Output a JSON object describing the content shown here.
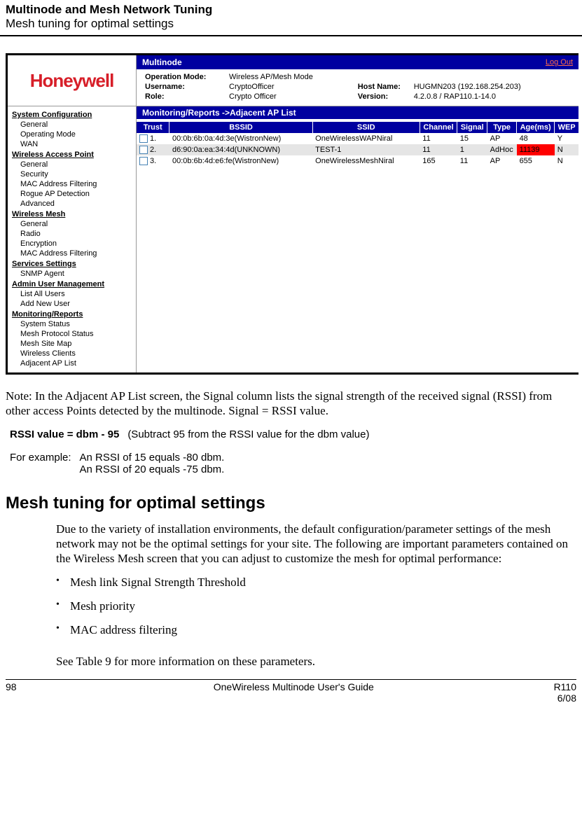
{
  "header": {
    "title": "Multinode and Mesh Network Tuning",
    "subtitle": "Mesh tuning for optimal settings"
  },
  "screenshot": {
    "logo_text": "Honeywell",
    "logo_color": "#d71e28",
    "titlebar": {
      "title": "Multinode",
      "logout_label": "Log Out"
    },
    "info": {
      "operation_mode_label": "Operation Mode:",
      "operation_mode_value": "Wireless AP/Mesh Mode",
      "username_label": "Username:",
      "username_value": "CryptoOfficer",
      "role_label": "Role:",
      "role_value": "Crypto Officer",
      "hostname_label": "Host Name:",
      "hostname_value": "HUGMN203 (192.168.254.203)",
      "version_label": "Version:",
      "version_value": "4.2.0.8 / RAP110.1-14.0"
    },
    "sidebar": [
      {
        "cat": "System Configuration",
        "items": [
          "General",
          "Operating Mode",
          "WAN"
        ]
      },
      {
        "cat": "Wireless Access Point",
        "items": [
          "General",
          "Security",
          "MAC Address Filtering",
          "Rogue AP Detection",
          "Advanced"
        ]
      },
      {
        "cat": "Wireless Mesh",
        "items": [
          "General",
          "Radio",
          "Encryption",
          "MAC Address Filtering"
        ]
      },
      {
        "cat": "Services Settings",
        "items": [
          "SNMP Agent"
        ]
      },
      {
        "cat": "Admin User Management",
        "items": [
          "List All Users",
          "Add New User"
        ]
      },
      {
        "cat": "Monitoring/Reports",
        "items": [
          "System Status",
          "Mesh Protocol Status",
          "Mesh Site Map",
          "Wireless Clients",
          "Adjacent AP List"
        ]
      }
    ],
    "section_title": "Monitoring/Reports ->Adjacent AP List",
    "columns": {
      "trust": "Trust",
      "bssid": "BSSID",
      "ssid": "SSID",
      "channel": "Channel",
      "signal": "Signal",
      "type": "Type",
      "age": "Age(ms)",
      "wep": "WEP"
    },
    "rows": [
      {
        "n": "1.",
        "bssid": "00:0b:6b:0a:4d:3e(WistronNew)",
        "ssid": "OneWirelessWAPNiral",
        "channel": "11",
        "signal": "15",
        "type": "AP",
        "age": "48",
        "wep": "Y",
        "age_red": false
      },
      {
        "n": "2.",
        "bssid": "d6:90:0a:ea:34:4d(UNKNOWN)",
        "ssid": "TEST-1",
        "channel": "11",
        "signal": "1",
        "type": "AdHoc",
        "age": "11139",
        "wep": "N",
        "age_red": true
      },
      {
        "n": "3.",
        "bssid": "00:0b:6b:4d:e6:fe(WistronNew)",
        "ssid": "OneWirelessMeshNiral",
        "channel": "165",
        "signal": "11",
        "type": "AP",
        "age": "655",
        "wep": "N",
        "age_red": false
      }
    ]
  },
  "note_text": "Note:  In the Adjacent AP List screen, the Signal column lists the signal strength of the received signal (RSSI) from other access Points detected by the multinode.  Signal = RSSI value.",
  "calc": {
    "formula": "RSSI value = dbm - 95",
    "formula_note": "(Subtract 95 from the RSSI value for the dbm value)",
    "example_label": "For example:",
    "example_line1": "An RSSI of 15 equals -80 dbm.",
    "example_line2": "An RSSI of 20 equals -75 dbm."
  },
  "section_heading": "Mesh tuning for optimal settings",
  "para1": "Due to the variety of installation environments, the default configuration/parameter settings of the mesh network may not be the optimal settings for your site. The following are important parameters contained on the Wireless Mesh screen that you can adjust to customize the mesh for optimal performance:",
  "bullets": [
    "Mesh link Signal Strength Threshold",
    "Mesh priority",
    "MAC address filtering"
  ],
  "para2": "See Table 9 for more information on these parameters.",
  "footer": {
    "page": "98",
    "center": "OneWireless Multinode User's Guide",
    "right1": "R110",
    "right2": "6/08"
  }
}
